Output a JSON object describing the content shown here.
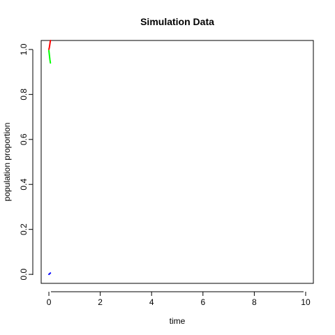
{
  "chart_data": {
    "type": "line",
    "title": "Simulation Data",
    "xlabel": "time",
    "ylabel": "population proportion",
    "xlim": [
      -0.3,
      10.3
    ],
    "ylim": [
      -0.04,
      1.04
    ],
    "xticks": [
      0,
      2,
      4,
      6,
      8,
      10
    ],
    "yticks": [
      0.0,
      0.2,
      0.4,
      0.6,
      0.8,
      1.0
    ],
    "xtick_labels": [
      "0",
      "2",
      "4",
      "6",
      "8",
      "10"
    ],
    "ytick_labels": [
      "0.0",
      "0.2",
      "0.4",
      "0.6",
      "0.8",
      "1.0"
    ],
    "grid": false,
    "series": [
      {
        "color": "#ff0000",
        "x": [
          0.0,
          0.02,
          0.04,
          0.06
        ],
        "y": [
          1.0,
          1.01,
          1.025,
          1.04
        ]
      },
      {
        "color": "#00ff00",
        "x": [
          0.0,
          0.02,
          0.04,
          0.06
        ],
        "y": [
          0.995,
          0.975,
          0.955,
          0.94
        ]
      },
      {
        "color": "#0000ff",
        "x": [
          0.0,
          0.02,
          0.04,
          0.06
        ],
        "y": [
          0.0,
          0.002,
          0.004,
          0.006
        ]
      }
    ]
  }
}
